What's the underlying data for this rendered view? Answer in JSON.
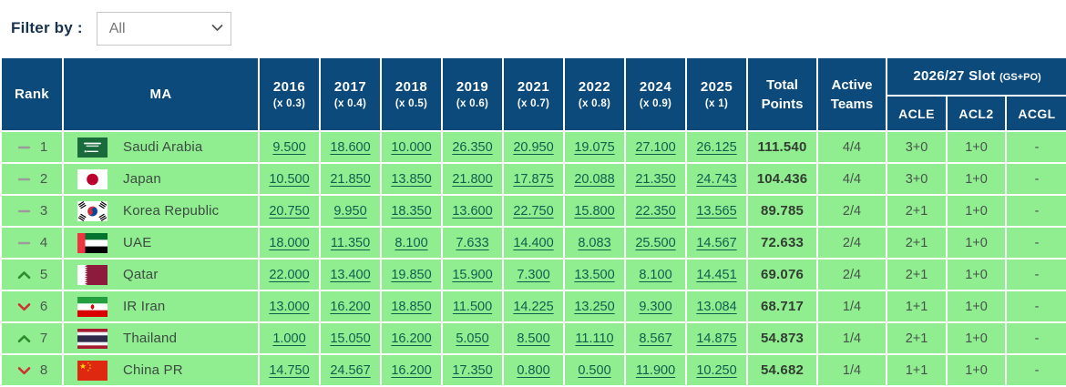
{
  "filter": {
    "label": "Filter by :",
    "value": "All"
  },
  "colors": {
    "header-bg": "#0b4a7b",
    "row-bg": "#90ee90",
    "link": "#0f5f4e",
    "trend-up": "#2e8b2e",
    "trend-down": "#cf3434",
    "trend-same": "#9a9a9a"
  },
  "table": {
    "header": {
      "rank": "Rank",
      "ma": "MA",
      "years": [
        {
          "year": "2016",
          "multiplier": "(x 0.3)"
        },
        {
          "year": "2017",
          "multiplier": "(x 0.4)"
        },
        {
          "year": "2018",
          "multiplier": "(x 0.5)"
        },
        {
          "year": "2019",
          "multiplier": "(x 0.6)"
        },
        {
          "year": "2021",
          "multiplier": "(x 0.7)"
        },
        {
          "year": "2022",
          "multiplier": "(x 0.8)"
        },
        {
          "year": "2024",
          "multiplier": "(x 0.9)"
        },
        {
          "year": "2025",
          "multiplier": "(x 1)"
        }
      ],
      "total": "Total Points",
      "active": "Active Teams",
      "slot": {
        "title": "2026/27 Slot",
        "suffix": "(GS+PO)",
        "subcolumns": [
          "ACLE",
          "ACL2",
          "ACGL"
        ]
      }
    },
    "rows": [
      {
        "trend": "same",
        "rank": "1",
        "flag": "saudi-arabia",
        "country": "Saudi Arabia",
        "scores": [
          "9.500",
          "18.600",
          "10.000",
          "26.350",
          "20.950",
          "19.075",
          "27.100",
          "26.125"
        ],
        "total": "111.540",
        "active_teams": "4/4",
        "acle": "3+0",
        "acl2": "1+0",
        "acgl": "-"
      },
      {
        "trend": "same",
        "rank": "2",
        "flag": "japan",
        "country": "Japan",
        "scores": [
          "10.500",
          "21.850",
          "13.850",
          "21.800",
          "17.875",
          "20.088",
          "21.350",
          "24.743"
        ],
        "total": "104.436",
        "active_teams": "4/4",
        "acle": "3+0",
        "acl2": "1+0",
        "acgl": "-"
      },
      {
        "trend": "same",
        "rank": "3",
        "flag": "korea-republic",
        "country": "Korea Republic",
        "scores": [
          "20.750",
          "9.950",
          "18.350",
          "13.600",
          "22.750",
          "15.800",
          "22.350",
          "13.565"
        ],
        "total": "89.785",
        "active_teams": "2/4",
        "acle": "2+1",
        "acl2": "1+0",
        "acgl": "-"
      },
      {
        "trend": "same",
        "rank": "4",
        "flag": "uae",
        "country": "UAE",
        "scores": [
          "18.000",
          "11.350",
          "8.100",
          "7.633",
          "14.400",
          "8.083",
          "25.500",
          "14.567"
        ],
        "total": "72.633",
        "active_teams": "2/4",
        "acle": "2+1",
        "acl2": "1+0",
        "acgl": "-"
      },
      {
        "trend": "up",
        "rank": "5",
        "flag": "qatar",
        "country": "Qatar",
        "scores": [
          "22.000",
          "13.400",
          "19.850",
          "15.900",
          "7.300",
          "13.500",
          "8.100",
          "14.451"
        ],
        "total": "69.076",
        "active_teams": "2/4",
        "acle": "2+1",
        "acl2": "1+0",
        "acgl": "-"
      },
      {
        "trend": "down",
        "rank": "6",
        "flag": "ir-iran",
        "country": "IR Iran",
        "scores": [
          "13.000",
          "16.200",
          "18.850",
          "11.500",
          "14.225",
          "13.250",
          "9.300",
          "13.084"
        ],
        "total": "68.717",
        "active_teams": "1/4",
        "acle": "1+1",
        "acl2": "1+0",
        "acgl": "-"
      },
      {
        "trend": "up",
        "rank": "7",
        "flag": "thailand",
        "country": "Thailand",
        "scores": [
          "1.000",
          "15.050",
          "16.200",
          "5.050",
          "8.500",
          "11.110",
          "8.567",
          "14.875"
        ],
        "total": "54.873",
        "active_teams": "1/4",
        "acle": "2+1",
        "acl2": "1+0",
        "acgl": "-"
      },
      {
        "trend": "down",
        "rank": "8",
        "flag": "china-pr",
        "country": "China PR",
        "scores": [
          "14.750",
          "24.567",
          "16.200",
          "17.350",
          "0.800",
          "0.500",
          "11.900",
          "10.250"
        ],
        "total": "54.682",
        "active_teams": "1/4",
        "acle": "1+1",
        "acl2": "1+0",
        "acgl": "-"
      }
    ]
  }
}
